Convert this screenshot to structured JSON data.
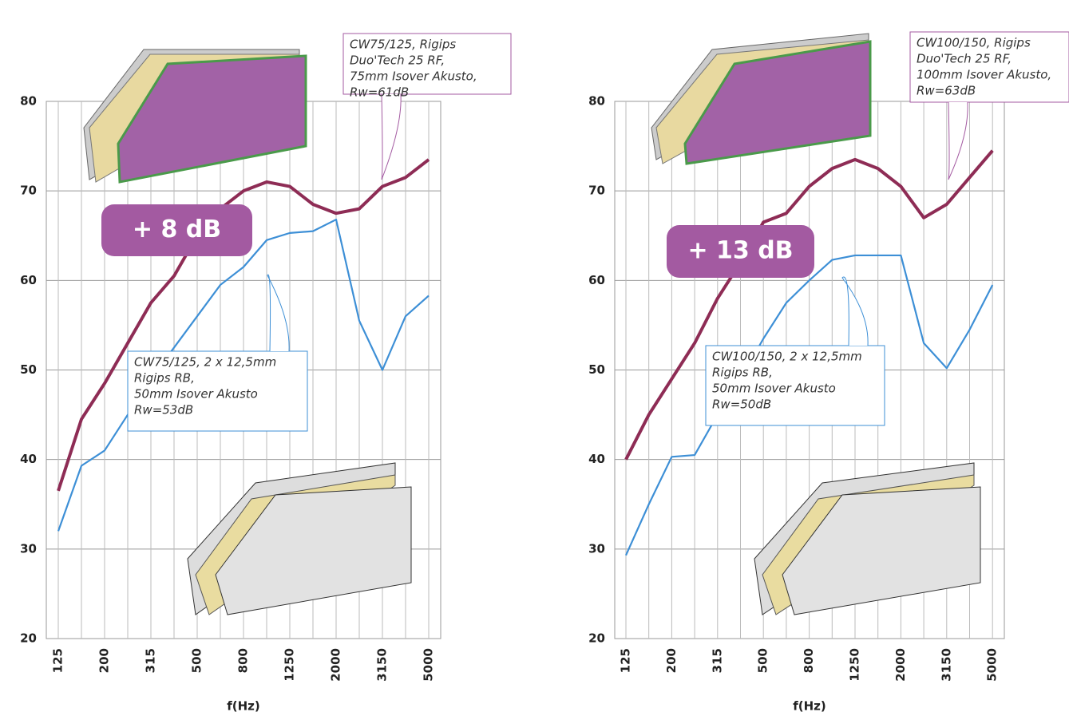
{
  "chart_data": [
    {
      "type": "line",
      "categories": [
        "125",
        null,
        "200",
        null,
        "315",
        null,
        "500",
        null,
        "800",
        null,
        "1250",
        null,
        "2000",
        null,
        "3150",
        null,
        "5000"
      ],
      "xlabel": "f(Hz)",
      "ylim": [
        20,
        80
      ],
      "yticks": [
        20,
        30,
        40,
        50,
        60,
        70,
        80
      ],
      "grid": true,
      "series": [
        {
          "color": "#8e2c55",
          "values": [
            36.5,
            44.5,
            48.5,
            53,
            57.5,
            60.5,
            65,
            68,
            70,
            71,
            70.5,
            68.5,
            67.5,
            68,
            70.5,
            71.5,
            73.5
          ]
        },
        {
          "color": "#3d8fd6",
          "values": [
            32,
            39.3,
            41,
            45,
            49,
            52.5,
            56,
            59.5,
            61.5,
            64.5,
            65.3,
            65.5,
            66.8,
            55.5,
            50,
            56,
            58.3
          ]
        }
      ],
      "badge": "+ 8 dB",
      "callouts": [
        [
          "CW75/125, Rigips",
          "Duo'Tech 25 RF,",
          "75mm Isover Akusto,",
          "Rw=61dB"
        ],
        [
          "CW75/125, 2 x 12,5mm",
          "Rigips RB,",
          "50mm Isover Akusto",
          "Rw=53dB"
        ]
      ]
    },
    {
      "type": "line",
      "categories": [
        "125",
        null,
        "200",
        null,
        "315",
        null,
        "500",
        null,
        "800",
        null,
        "1250",
        null,
        "2000",
        null,
        "3150",
        null,
        "5000"
      ],
      "xlabel": "f(Hz)",
      "ylim": [
        20,
        80
      ],
      "yticks": [
        20,
        30,
        40,
        50,
        60,
        70,
        80
      ],
      "grid": true,
      "series": [
        {
          "color": "#8e2c55",
          "values": [
            40,
            45,
            49,
            53,
            58,
            62,
            66.5,
            67.5,
            70.5,
            72.5,
            73.5,
            72.5,
            70.5,
            67,
            68.5,
            71.5,
            74.5
          ]
        },
        {
          "color": "#3d8fd6",
          "values": [
            29.3,
            35,
            40.3,
            40.5,
            45,
            49,
            53.5,
            57.5,
            60,
            62.3,
            62.8,
            62.8,
            62.8,
            53,
            50.2,
            54.5,
            59.5
          ]
        }
      ],
      "badge": "+ 13 dB",
      "callouts": [
        [
          "CW100/150, Rigips",
          "Duo'Tech 25 RF,",
          "100mm Isover Akusto,",
          "Rw=63dB"
        ],
        [
          "CW100/150, 2 x 12,5mm",
          "Rigips RB,",
          "50mm Isover Akusto",
          "Rw=50dB"
        ]
      ]
    }
  ]
}
